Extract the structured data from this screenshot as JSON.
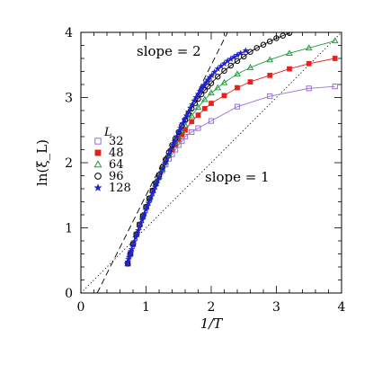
{
  "chart_data": {
    "type": "line",
    "xlabel": "1/T",
    "ylabel": "ln(ξ_L)",
    "xlim": [
      0,
      4
    ],
    "ylim": [
      0,
      4
    ],
    "xticks": [
      "0",
      "1",
      "2",
      "3",
      "4"
    ],
    "yticks": [
      "0",
      "1",
      "2",
      "3",
      "4"
    ],
    "grid": false,
    "legend": {
      "title": "L",
      "placement": "middle-left",
      "entries": [
        "32",
        "48",
        "64",
        "96",
        "128"
      ]
    },
    "annotations": [
      "slope = 2",
      "slope = 1"
    ],
    "reference_lines": [
      {
        "label": "slope = 2",
        "style": "dashed",
        "points": [
          [
            0.25,
            0
          ],
          [
            2.25,
            4
          ]
        ]
      },
      {
        "label": "slope = 1",
        "style": "dotted",
        "points": [
          [
            0,
            0
          ],
          [
            4,
            4
          ]
        ]
      }
    ],
    "series": [
      {
        "name": "32",
        "marker": "open-square",
        "color": "#9b6fd3",
        "x": [
          0.72,
          0.76,
          0.8,
          0.85,
          0.9,
          0.95,
          1.0,
          1.05,
          1.1,
          1.15,
          1.2,
          1.25,
          1.3,
          1.35,
          1.4,
          1.45,
          1.5,
          1.55,
          1.6,
          1.7,
          1.8,
          2.0,
          2.4,
          2.9,
          3.5,
          3.9
        ],
        "y": [
          0.45,
          0.6,
          0.75,
          0.9,
          1.05,
          1.18,
          1.32,
          1.45,
          1.57,
          1.68,
          1.78,
          1.88,
          1.97,
          2.06,
          2.13,
          2.2,
          2.27,
          2.33,
          2.4,
          2.47,
          2.53,
          2.64,
          2.86,
          3.02,
          3.14,
          3.17
        ]
      },
      {
        "name": "48",
        "marker": "filled-square",
        "color": "#e8201a",
        "x": [
          0.72,
          0.76,
          0.8,
          0.85,
          0.9,
          0.95,
          1.0,
          1.05,
          1.1,
          1.15,
          1.2,
          1.25,
          1.3,
          1.35,
          1.4,
          1.45,
          1.5,
          1.55,
          1.6,
          1.7,
          1.8,
          1.9,
          2.0,
          2.2,
          2.4,
          2.6,
          2.9,
          3.2,
          3.5,
          3.9
        ],
        "y": [
          0.45,
          0.6,
          0.75,
          0.9,
          1.05,
          1.18,
          1.32,
          1.45,
          1.57,
          1.68,
          1.79,
          1.9,
          2.01,
          2.11,
          2.2,
          2.28,
          2.36,
          2.43,
          2.5,
          2.63,
          2.73,
          2.83,
          2.91,
          3.03,
          3.15,
          3.24,
          3.34,
          3.44,
          3.52,
          3.6
        ]
      },
      {
        "name": "64",
        "marker": "open-triangle",
        "color": "#1e9e3e",
        "x": [
          0.72,
          0.76,
          0.8,
          0.85,
          0.9,
          0.95,
          1.0,
          1.05,
          1.1,
          1.15,
          1.2,
          1.25,
          1.3,
          1.35,
          1.4,
          1.45,
          1.5,
          1.55,
          1.6,
          1.7,
          1.8,
          1.9,
          2.0,
          2.1,
          2.2,
          2.4,
          2.6,
          2.9,
          3.2,
          3.5,
          3.9
        ],
        "y": [
          0.45,
          0.6,
          0.75,
          0.9,
          1.05,
          1.18,
          1.32,
          1.45,
          1.57,
          1.68,
          1.79,
          1.9,
          2.01,
          2.12,
          2.22,
          2.31,
          2.4,
          2.49,
          2.58,
          2.72,
          2.85,
          2.97,
          3.07,
          3.15,
          3.23,
          3.36,
          3.46,
          3.58,
          3.68,
          3.76,
          3.87
        ]
      },
      {
        "name": "96",
        "marker": "open-circle",
        "color": "#000000",
        "x": [
          0.72,
          0.76,
          0.8,
          0.85,
          0.9,
          0.95,
          1.0,
          1.05,
          1.1,
          1.15,
          1.2,
          1.25,
          1.3,
          1.35,
          1.4,
          1.45,
          1.5,
          1.55,
          1.6,
          1.65,
          1.7,
          1.75,
          1.8,
          1.85,
          1.9,
          1.95,
          2.0,
          2.1,
          2.2,
          2.3,
          2.4,
          2.5,
          2.6,
          2.7,
          2.8,
          2.9,
          3.0,
          3.1,
          3.2
        ],
        "y": [
          0.45,
          0.6,
          0.75,
          0.9,
          1.05,
          1.18,
          1.32,
          1.45,
          1.57,
          1.69,
          1.81,
          1.93,
          2.05,
          2.16,
          2.27,
          2.37,
          2.47,
          2.57,
          2.66,
          2.75,
          2.83,
          2.91,
          2.98,
          3.05,
          3.11,
          3.17,
          3.22,
          3.32,
          3.41,
          3.49,
          3.56,
          3.63,
          3.7,
          3.76,
          3.81,
          3.86,
          3.91,
          3.95,
          3.99
        ]
      },
      {
        "name": "128",
        "marker": "star",
        "color": "#2222cc",
        "x": [
          0.71,
          0.72,
          0.73,
          0.74,
          0.75,
          0.76,
          0.77,
          0.78,
          0.8,
          0.82,
          0.84,
          0.86,
          0.88,
          0.9,
          0.92,
          0.94,
          0.96,
          0.98,
          1.0,
          1.02,
          1.04,
          1.06,
          1.08,
          1.1,
          1.12,
          1.14,
          1.16,
          1.18,
          1.2,
          1.23,
          1.26,
          1.29,
          1.32,
          1.35,
          1.38,
          1.41,
          1.44,
          1.47,
          1.5,
          1.53,
          1.56,
          1.59,
          1.62,
          1.65,
          1.68,
          1.71,
          1.74,
          1.77,
          1.8,
          1.83,
          1.86,
          1.89,
          1.92,
          1.95,
          1.98,
          2.01,
          2.05,
          2.1,
          2.15,
          2.2,
          2.25,
          2.3,
          2.35,
          2.4,
          2.45,
          2.53
        ],
        "y": [
          0.45,
          0.48,
          0.52,
          0.55,
          0.58,
          0.61,
          0.64,
          0.67,
          0.73,
          0.79,
          0.85,
          0.9,
          0.96,
          1.01,
          1.07,
          1.12,
          1.17,
          1.22,
          1.28,
          1.33,
          1.38,
          1.43,
          1.48,
          1.53,
          1.58,
          1.63,
          1.68,
          1.73,
          1.77,
          1.85,
          1.92,
          1.99,
          2.06,
          2.13,
          2.2,
          2.27,
          2.33,
          2.4,
          2.47,
          2.53,
          2.6,
          2.66,
          2.72,
          2.78,
          2.84,
          2.89,
          2.95,
          3.0,
          3.05,
          3.1,
          3.15,
          3.19,
          3.23,
          3.27,
          3.31,
          3.34,
          3.39,
          3.44,
          3.48,
          3.52,
          3.56,
          3.59,
          3.62,
          3.65,
          3.68,
          3.72
        ]
      }
    ]
  }
}
